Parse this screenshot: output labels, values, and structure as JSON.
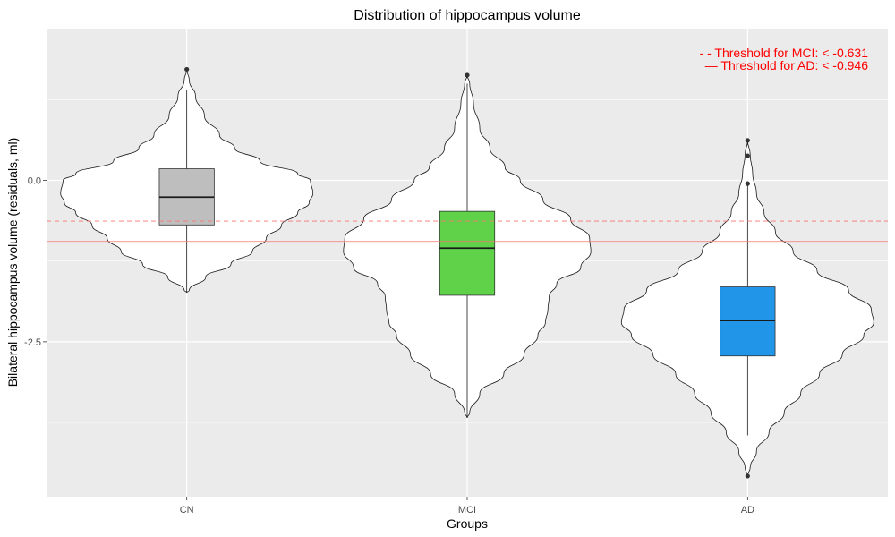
{
  "chart_data": {
    "type": "violin",
    "title": "Distribution of hippocampus volume",
    "xlabel": "Groups",
    "ylabel": "Bilateral hippocampus volume (residuals, ml)",
    "ylim": [
      -4.9,
      2.35
    ],
    "yticks": [
      {
        "value": 0.0,
        "label": "0.0"
      },
      {
        "value": -2.5,
        "label": "-2.5"
      }
    ],
    "categories": [
      "CN",
      "MCI",
      "AD"
    ],
    "grid": true,
    "panel_background": "#ebebeb",
    "thresholds": [
      {
        "label": "- - Threshold for MCI: < -0.631",
        "value": -0.631,
        "style": "dashed",
        "color": "#f8766d"
      },
      {
        "label": "— Threshold for AD: < -0.946",
        "value": -0.946,
        "style": "solid",
        "color": "#f8766d"
      }
    ],
    "annotation_color": "#ff0000",
    "groups": [
      {
        "name": "CN",
        "fill": "#bebebe",
        "box": {
          "q1": -0.69,
          "median": -0.26,
          "q3": 0.18,
          "whisker_low": -1.74,
          "whisker_high": 1.4
        },
        "outliers": [
          1.72
        ],
        "violin": {
          "y": [
            1.72,
            1.55,
            1.3,
            1.0,
            0.7,
            0.5,
            0.3,
            0.1,
            0.0,
            -0.2,
            -0.35,
            -0.5,
            -0.7,
            -0.9,
            -1.1,
            -1.3,
            -1.5,
            -1.7,
            -1.74
          ],
          "w": [
            0.0,
            0.02,
            0.07,
            0.14,
            0.26,
            0.38,
            0.58,
            0.88,
            0.98,
            1.0,
            0.97,
            0.88,
            0.75,
            0.63,
            0.52,
            0.35,
            0.15,
            0.02,
            0.0
          ]
        }
      },
      {
        "name": "MCI",
        "fill": "#5fd24a",
        "box": {
          "q1": -1.78,
          "median": -1.05,
          "q3": -0.48,
          "whisker_low": -3.68,
          "whisker_high": 1.5
        },
        "outliers": [
          1.63
        ],
        "violin": {
          "y": [
            1.63,
            1.5,
            1.2,
            0.8,
            0.5,
            0.2,
            0.0,
            -0.3,
            -0.6,
            -0.9,
            -1.1,
            -1.35,
            -1.6,
            -1.8,
            -2.0,
            -2.2,
            -2.4,
            -2.7,
            -3.0,
            -3.3,
            -3.6,
            -3.68
          ],
          "w": [
            0.0,
            0.02,
            0.05,
            0.1,
            0.18,
            0.3,
            0.42,
            0.6,
            0.82,
            0.97,
            0.98,
            0.9,
            0.71,
            0.65,
            0.64,
            0.62,
            0.56,
            0.45,
            0.29,
            0.1,
            0.02,
            0.0
          ]
        }
      },
      {
        "name": "AD",
        "fill": "#2196e8",
        "box": {
          "q1": -2.72,
          "median": -2.17,
          "q3": -1.65,
          "whisker_low": -3.95,
          "whisker_high": -0.07
        },
        "outliers": [
          0.62,
          0.38,
          -0.05,
          -4.58
        ],
        "violin": {
          "y": [
            0.62,
            0.4,
            0.1,
            -0.2,
            -0.5,
            -0.8,
            -1.1,
            -1.4,
            -1.7,
            -2.0,
            -2.2,
            -2.4,
            -2.7,
            -3.0,
            -3.3,
            -3.6,
            -3.9,
            -4.2,
            -4.45,
            -4.58
          ],
          "w": [
            0.0,
            0.02,
            0.04,
            0.07,
            0.13,
            0.22,
            0.36,
            0.55,
            0.8,
            0.98,
            1.0,
            0.92,
            0.75,
            0.57,
            0.42,
            0.29,
            0.17,
            0.07,
            0.02,
            0.0
          ]
        }
      }
    ]
  }
}
